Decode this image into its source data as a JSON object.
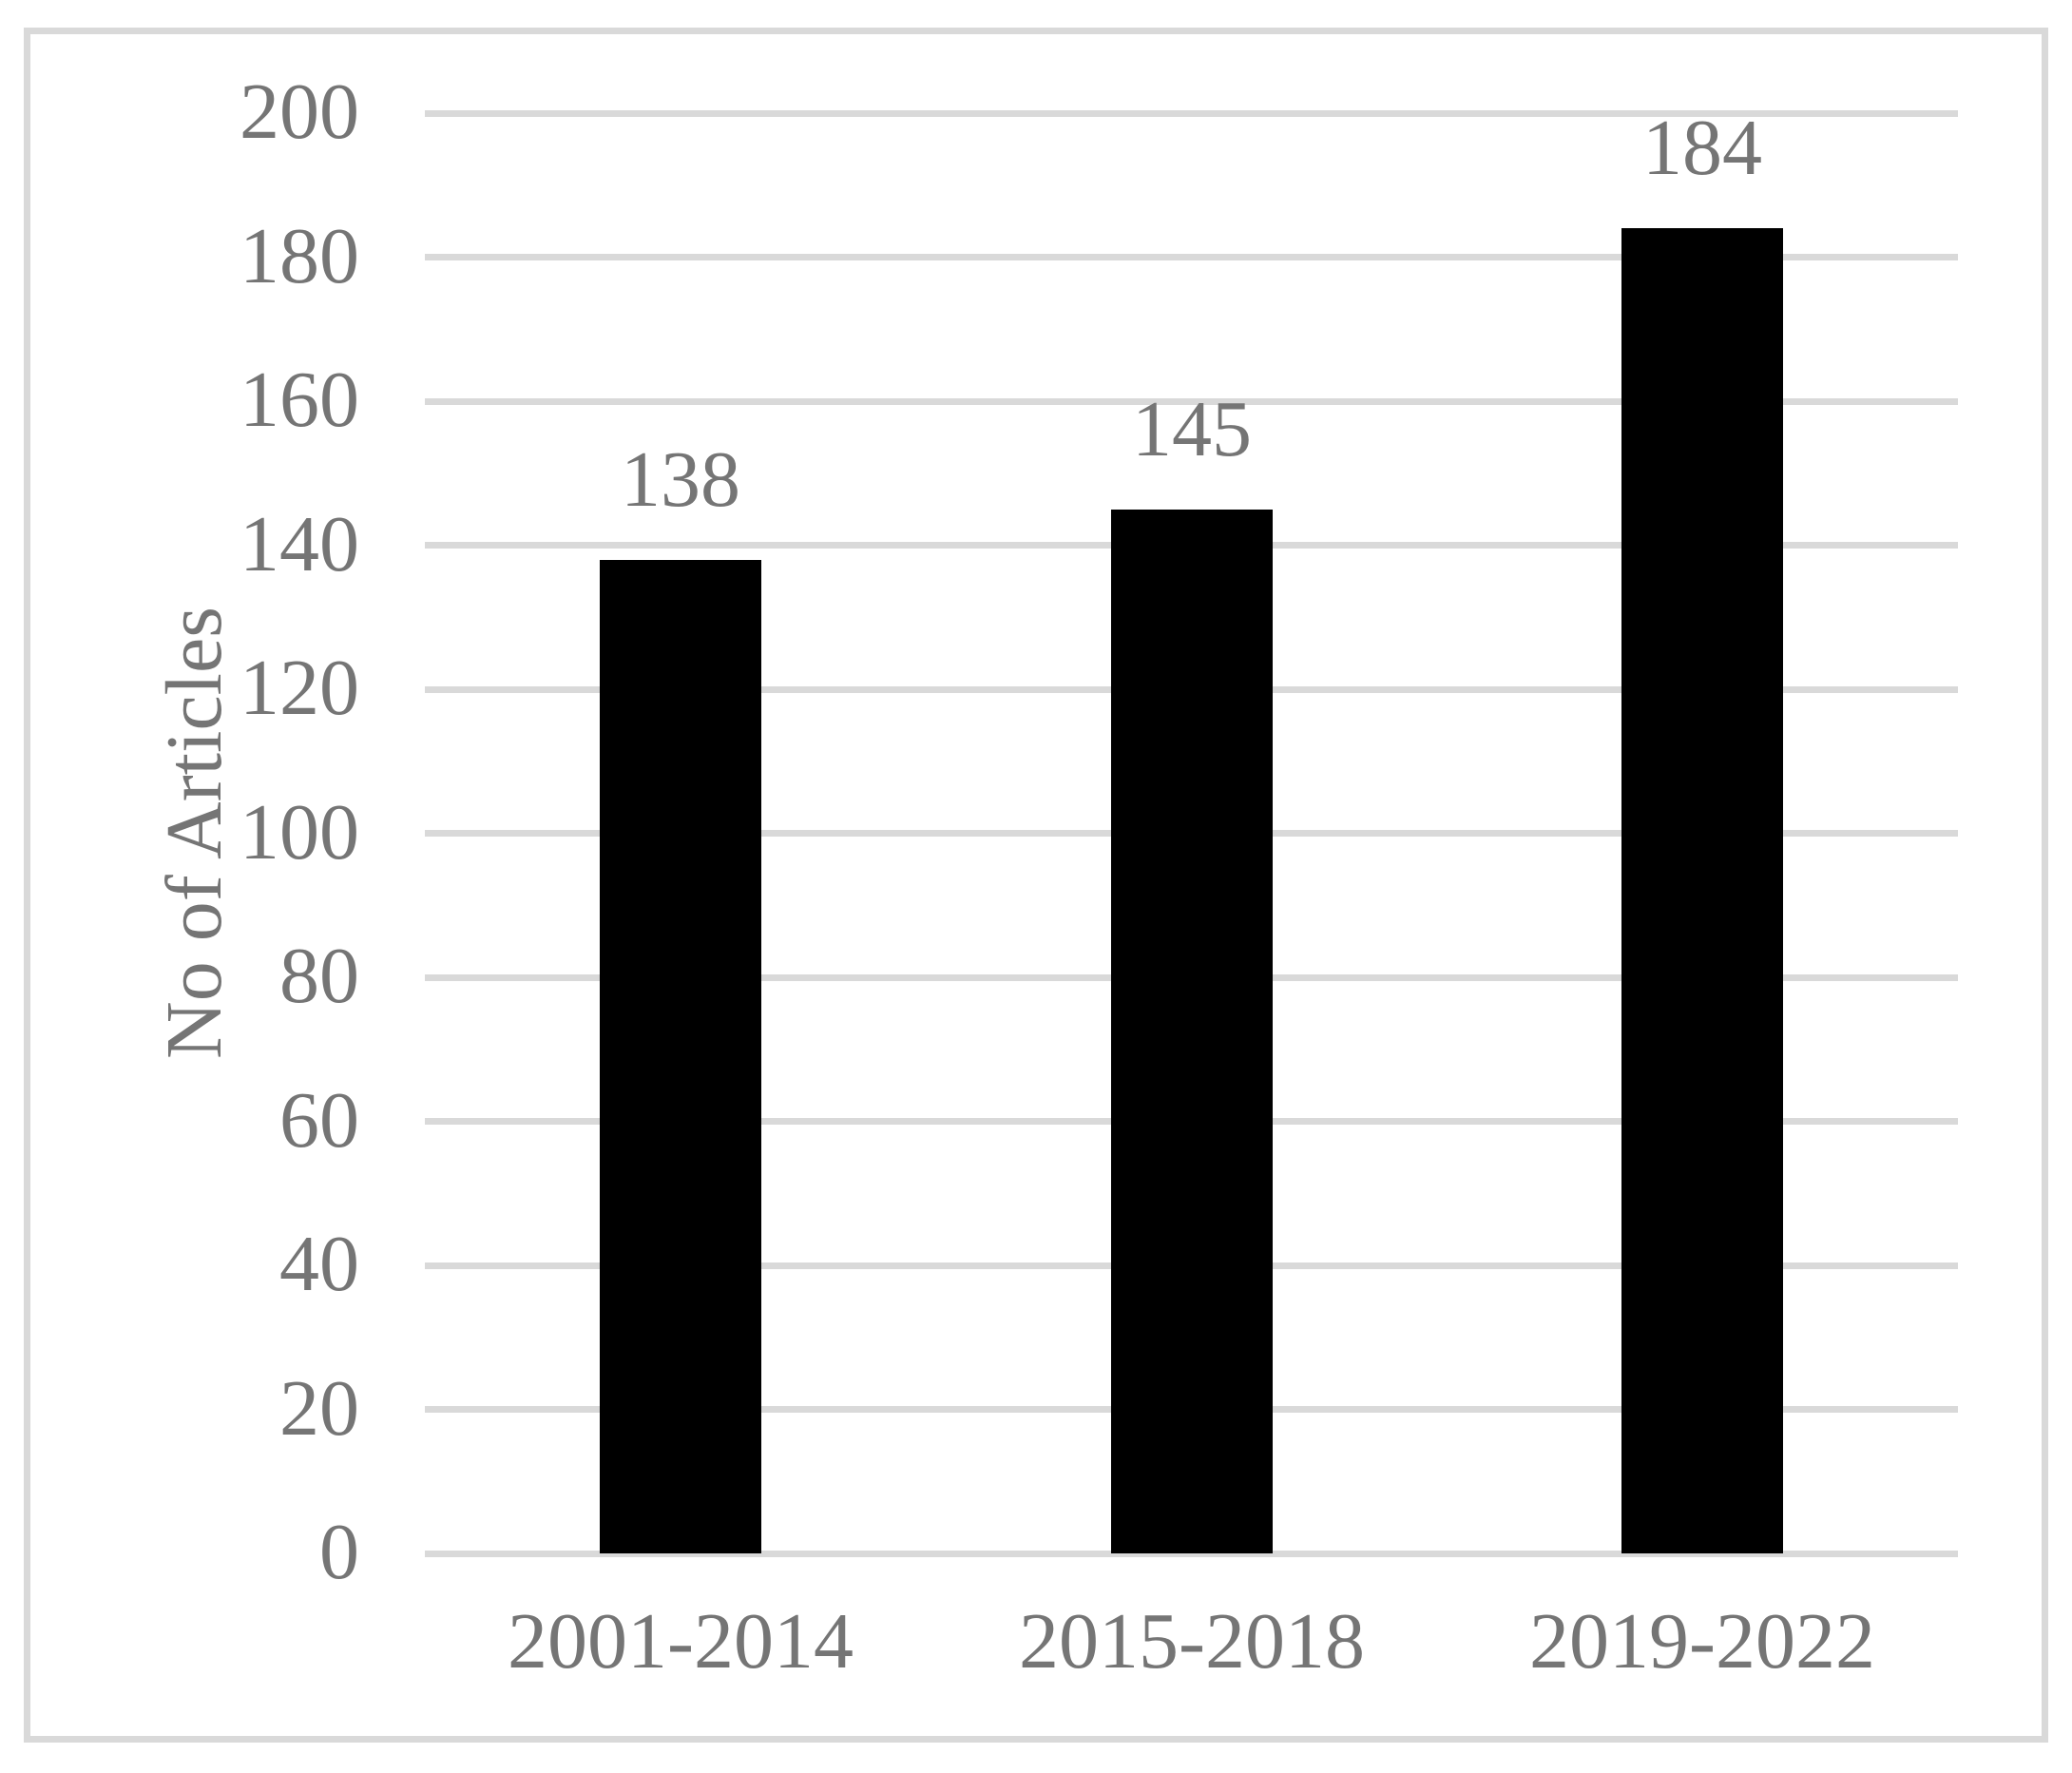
{
  "chart_data": {
    "type": "bar",
    "title": "",
    "categories": [
      "2001-2014",
      "2015-2018",
      "2019-2022"
    ],
    "values": [
      138,
      145,
      184
    ],
    "data_labels": [
      "138",
      "145",
      "184"
    ],
    "xlabel": "",
    "ylabel": "No of Articles",
    "ylim": [
      0,
      200
    ],
    "ytick_interval": 20,
    "ytick_labels": [
      "0",
      "20",
      "40",
      "60",
      "80",
      "100",
      "120",
      "140",
      "160",
      "180",
      "200"
    ],
    "grid": "horizontal",
    "legend_position": "none",
    "colors": {
      "bar": "#000000",
      "gridline": "#d9d9d9",
      "frame": "#d9d9d9",
      "text": "#757575",
      "background": "#ffffff"
    }
  }
}
